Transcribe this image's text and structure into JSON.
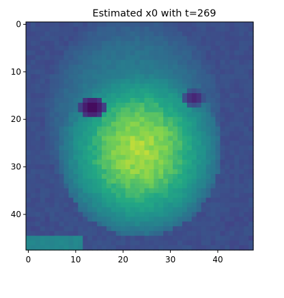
{
  "chart_data": {
    "type": "heatmap",
    "title": "Estimated x0 with t=269",
    "xlabel": "",
    "ylabel": "",
    "colormap": "viridis",
    "grid": false,
    "legend": "none",
    "rows": 48,
    "cols": 48,
    "xlim": [
      -0.5,
      47.5
    ],
    "ylim": [
      47.5,
      -0.5
    ],
    "x_ticks": [
      0,
      10,
      20,
      30,
      40
    ],
    "x_tick_labels": [
      "0",
      "10",
      "20",
      "30",
      "40"
    ],
    "y_ticks": [
      0,
      10,
      20,
      30,
      40
    ],
    "y_tick_labels": [
      "0",
      "10",
      "20",
      "30",
      "40"
    ],
    "value_range": [
      0,
      1
    ],
    "image_description_values": {
      "background": 0.3,
      "hair_frame": 0.48,
      "face_center": 0.86,
      "eyes": 0.02
    }
  },
  "colors": {
    "axes": "#000000",
    "background": "#ffffff"
  }
}
